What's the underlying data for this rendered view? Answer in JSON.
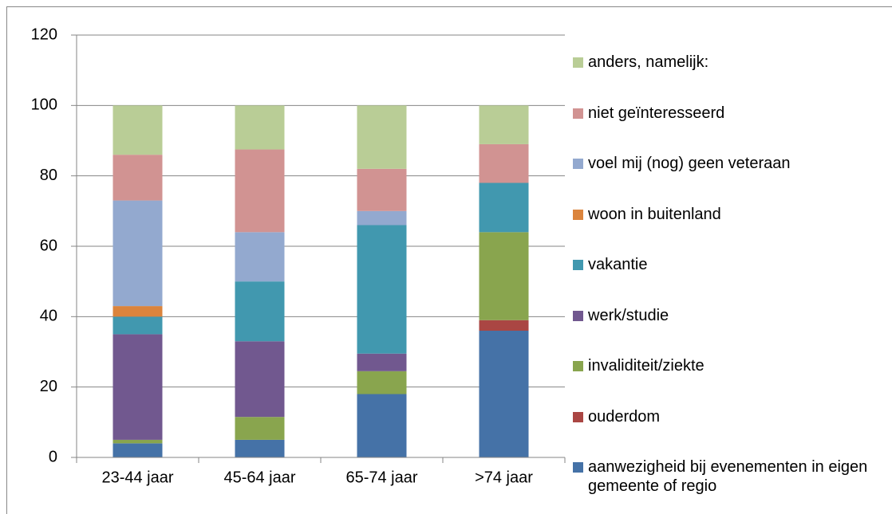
{
  "chart_data": {
    "type": "stacked_bar",
    "categories": [
      "23-44 jaar",
      "45-64 jaar",
      "65-74 jaar",
      ">74 jaar"
    ],
    "series": [
      {
        "name": "aanwezigheid bij evenementen in eigen gemeente of regio",
        "color": "#4572a7",
        "values": [
          4,
          5,
          18,
          36
        ]
      },
      {
        "name": "ouderdom",
        "color": "#aa4643",
        "values": [
          0,
          0,
          0,
          3
        ]
      },
      {
        "name": "invaliditeit/ziekte",
        "color": "#89a54e",
        "values": [
          1,
          6.5,
          6.5,
          25
        ]
      },
      {
        "name": "werk/studie",
        "color": "#71588f",
        "values": [
          30,
          21.5,
          5,
          0
        ]
      },
      {
        "name": "vakantie",
        "color": "#4198af",
        "values": [
          5,
          17,
          36.5,
          14
        ]
      },
      {
        "name": "woon in buitenland",
        "color": "#db843d",
        "values": [
          3,
          0,
          0,
          0
        ]
      },
      {
        "name": "voel mij (nog) geen veteraan",
        "color": "#93a9cf",
        "values": [
          30,
          14,
          4,
          0
        ]
      },
      {
        "name": "niet geïnteresseerd",
        "color": "#d19392",
        "values": [
          13,
          23.5,
          12,
          11
        ]
      },
      {
        "name": "anders, namelijk:",
        "color": "#b9cd96",
        "values": [
          14,
          12.5,
          18,
          11
        ]
      }
    ],
    "ylim": [
      0,
      120
    ],
    "yticks": [
      0,
      20,
      40,
      60,
      80,
      100,
      120
    ],
    "grid": true,
    "legend": "right"
  }
}
